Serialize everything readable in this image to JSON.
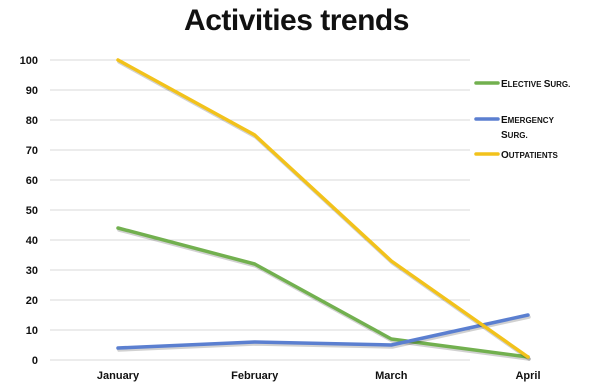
{
  "chart_data": {
    "type": "line",
    "title": "Activities trends",
    "xlabel": "",
    "ylabel": "",
    "categories": [
      "January",
      "February",
      "March",
      "April"
    ],
    "ylim": [
      0,
      100
    ],
    "yticks": [
      0,
      10,
      20,
      30,
      40,
      50,
      60,
      70,
      80,
      90,
      100
    ],
    "grid": true,
    "legend_position": "right",
    "series": [
      {
        "name": "Elective surg.",
        "color": "#72b04f",
        "values": [
          44,
          32,
          7,
          1
        ]
      },
      {
        "name": "Emergency surg.",
        "color": "#5b7fd0",
        "values": [
          4,
          6,
          5,
          15
        ]
      },
      {
        "name": "Outpatients",
        "color": "#f2c21b",
        "values": [
          100,
          75,
          33,
          1
        ]
      }
    ]
  }
}
